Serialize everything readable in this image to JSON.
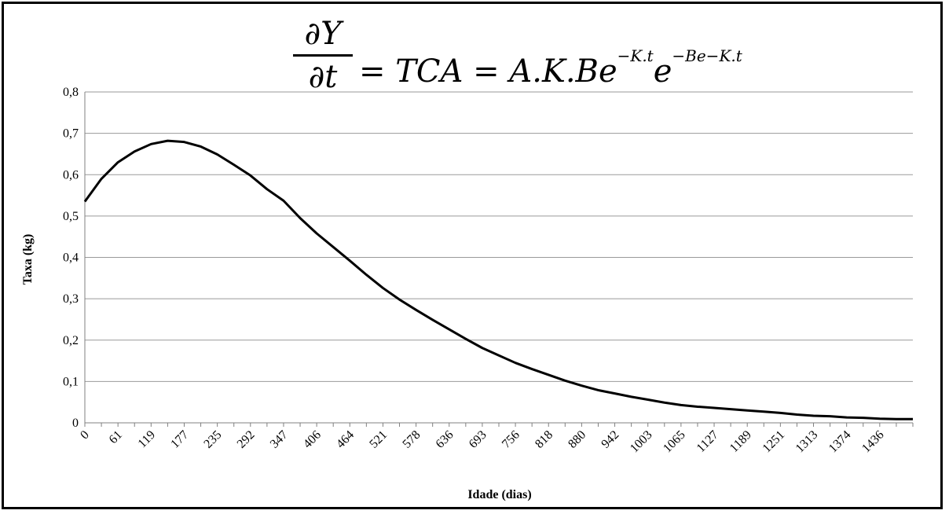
{
  "formula": {
    "numerator": "∂Y",
    "denominator": "∂t",
    "rhs_main": "= TCA = A.K.Be",
    "rhs_exp1": "−K.t",
    "rhs_e": "e",
    "rhs_exp2": "−Be−K.t"
  },
  "chart_data": {
    "type": "line",
    "title": "",
    "xlabel": "Idade (dias)",
    "ylabel": "Taxa (kg)",
    "ylim": [
      0,
      0.8
    ],
    "y_ticks": [
      "0",
      "0,1",
      "0,2",
      "0,3",
      "0,4",
      "0,5",
      "0,6",
      "0,7",
      "0,8"
    ],
    "x_tick_labels": [
      "0",
      "61",
      "119",
      "177",
      "235",
      "292",
      "347",
      "406",
      "464",
      "521",
      "578",
      "636",
      "693",
      "756",
      "818",
      "880",
      "942",
      "1003",
      "1065",
      "1127",
      "1189",
      "1251",
      "1313",
      "1374",
      "1436"
    ],
    "grid": true,
    "legend": "none",
    "series": [
      {
        "color": "#000000",
        "values": [
          0.535,
          0.59,
          0.63,
          0.656,
          0.674,
          0.682,
          0.679,
          0.668,
          0.649,
          0.624,
          0.598,
          0.565,
          0.537,
          0.495,
          0.458,
          0.425,
          0.392,
          0.358,
          0.326,
          0.298,
          0.273,
          0.249,
          0.226,
          0.203,
          0.181,
          0.163,
          0.145,
          0.13,
          0.116,
          0.102,
          0.09,
          0.079,
          0.071,
          0.063,
          0.056,
          0.049,
          0.043,
          0.039,
          0.036,
          0.033,
          0.03,
          0.027,
          0.024,
          0.02,
          0.017,
          0.016,
          0.013,
          0.012,
          0.01,
          0.009,
          0.009
        ]
      }
    ]
  }
}
